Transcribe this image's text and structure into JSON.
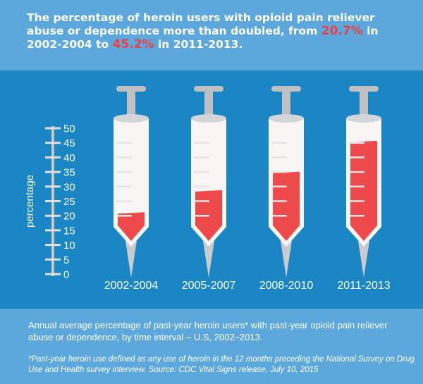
{
  "header": {
    "title_part1": "The percentage of heroin users with opioid pain reliever abuse or dependence more than doubled, from ",
    "highlight1": "20.7%",
    "title_part2": " in 2002-2004 to ",
    "highlight2": "45.2%",
    "title_part3": " in 2011-2013."
  },
  "footer": {
    "caption": "Annual average percentage of past-year heroin users* with past-year opioid pain reliever abuse or dependence, by time interval – U.S, 2002–2013.",
    "note": "*Past-year heroin use defined as any use of heroin in the 12 months preceding the National Survey on Drug Use and Health survey interview.  Source: CDC Vital Signs release, July 10, 2015"
  },
  "colors": {
    "fill": "#ef4a4b",
    "barrel": "#f7f6f4",
    "metal": "#bfc0c2",
    "accent": "#ef3e42"
  },
  "chart_data": {
    "type": "bar",
    "categories": [
      "2002-2004",
      "2005-2007",
      "2008-2010",
      "2011-2013"
    ],
    "values": [
      20.7,
      28.3,
      34.6,
      45.2
    ],
    "ylabel": "percentage",
    "ylim": [
      0,
      50
    ],
    "yticks": [
      "0",
      "5",
      "10",
      "15",
      "20",
      "25",
      "30",
      "35",
      "40",
      "45",
      "50"
    ]
  }
}
